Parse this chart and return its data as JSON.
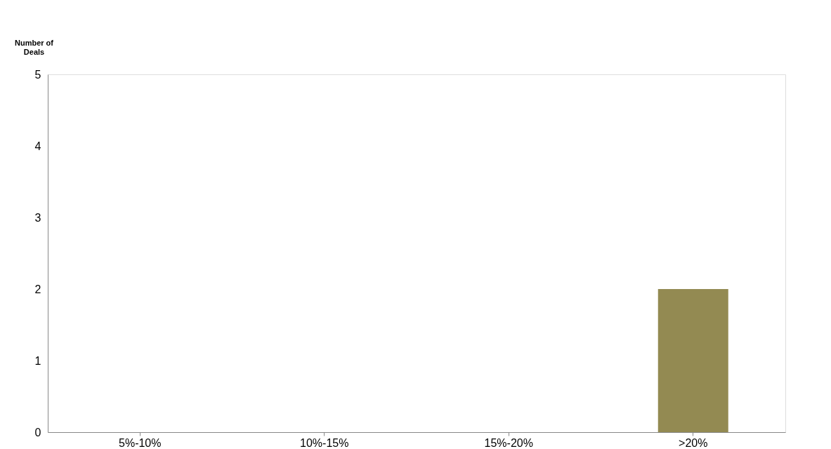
{
  "chart_data": {
    "type": "bar",
    "ylabel": "Number of\nDeals",
    "categories": [
      "5%-10%",
      "10%-15%",
      "15%-20%",
      ">20%"
    ],
    "values": [
      0,
      0,
      0,
      2
    ],
    "color": "#938a52",
    "ylim": [
      0,
      5
    ],
    "yticks": [
      0,
      1,
      2,
      3,
      4,
      5
    ],
    "grid": false
  }
}
